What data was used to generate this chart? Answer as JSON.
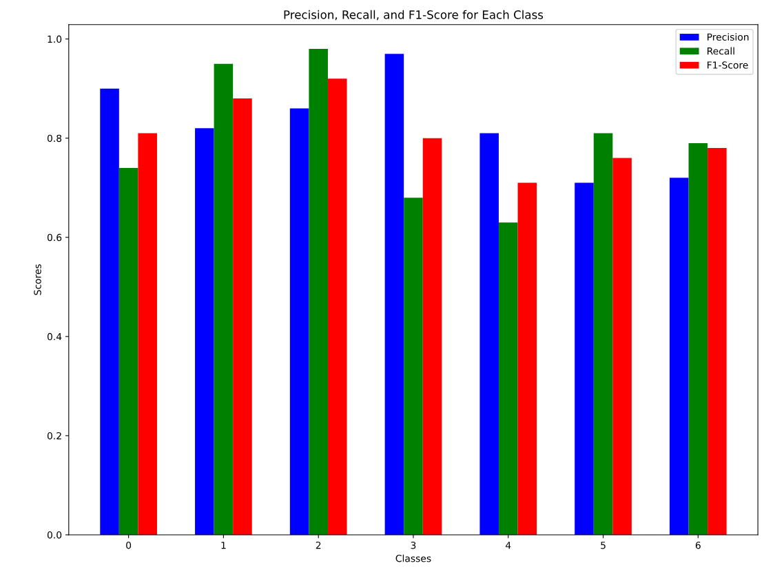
{
  "chart_data": {
    "type": "bar",
    "title": "Precision, Recall, and F1-Score for Each Class",
    "xlabel": "Classes",
    "ylabel": "Scores",
    "categories": [
      "0",
      "1",
      "2",
      "3",
      "4",
      "5",
      "6"
    ],
    "series": [
      {
        "name": "Precision",
        "color": "#0000ff",
        "values": [
          0.9,
          0.82,
          0.86,
          0.97,
          0.81,
          0.71,
          0.72
        ]
      },
      {
        "name": "Recall",
        "color": "#008000",
        "values": [
          0.74,
          0.95,
          0.98,
          0.68,
          0.63,
          0.81,
          0.79
        ]
      },
      {
        "name": "F1-Score",
        "color": "#ff0000",
        "values": [
          0.81,
          0.88,
          0.92,
          0.8,
          0.71,
          0.76,
          0.78
        ]
      }
    ],
    "ylim": [
      0,
      1.029
    ],
    "yticks": [
      {
        "value": 0,
        "label": "0.0"
      },
      0.2,
      0.4,
      0.6,
      0.8,
      {
        "value": 1,
        "label": "1.0"
      }
    ],
    "grid": false,
    "legend": "top right"
  }
}
